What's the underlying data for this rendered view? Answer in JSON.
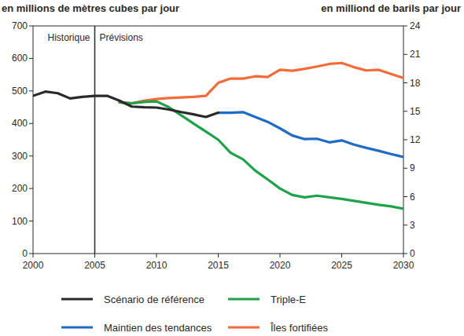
{
  "chart_data": {
    "type": "line",
    "y_label": "en millions de mètres cubes par jour",
    "y2_label": "en milliond de barils par jour",
    "x": [
      2000,
      2001,
      2002,
      2003,
      2004,
      2005,
      2006,
      2007,
      2008,
      2009,
      2010,
      2011,
      2012,
      2013,
      2014,
      2015,
      2016,
      2017,
      2018,
      2019,
      2020,
      2021,
      2022,
      2023,
      2024,
      2025,
      2026,
      2027,
      2028,
      2029,
      2030
    ],
    "xlim": [
      2000,
      2030
    ],
    "xticks": [
      2000,
      2005,
      2010,
      2015,
      2020,
      2025,
      2030
    ],
    "ylim": [
      0,
      700
    ],
    "yticks": [
      0,
      100,
      200,
      300,
      400,
      500,
      600,
      700
    ],
    "y2lim": [
      0,
      24
    ],
    "y2ticks": [
      0,
      3,
      6,
      9,
      12,
      15,
      18,
      21,
      24
    ],
    "forecast_start": 2005,
    "annotations": [
      {
        "text": "Historique"
      },
      {
        "text": "Prévisions"
      }
    ],
    "legend": "bottom",
    "grid": false,
    "series": [
      {
        "name": "Scénario de référence",
        "color": "#2b2a29",
        "values": [
          485,
          498,
          493,
          477,
          482,
          485,
          485,
          470,
          452,
          450,
          449,
          443,
          435,
          428,
          420,
          433,
          null,
          null,
          null,
          null,
          null,
          null,
          null,
          null,
          null,
          null,
          null,
          null,
          null,
          null,
          null
        ]
      },
      {
        "name": "Triple-E",
        "color": "#1ea24a",
        "values": [
          null,
          null,
          null,
          null,
          null,
          null,
          null,
          465,
          462,
          466,
          468,
          450,
          425,
          400,
          375,
          350,
          310,
          290,
          255,
          228,
          200,
          180,
          173,
          178,
          173,
          168,
          162,
          156,
          150,
          145,
          138
        ]
      },
      {
        "name": "Maintien des tendances",
        "color": "#1f6bc5",
        "values": [
          null,
          null,
          null,
          null,
          null,
          null,
          null,
          null,
          null,
          null,
          null,
          null,
          null,
          null,
          null,
          433,
          433,
          435,
          420,
          405,
          385,
          363,
          352,
          353,
          342,
          348,
          335,
          325,
          316,
          306,
          297
        ]
      },
      {
        "name": "Îles fortifiées",
        "color": "#f26b38",
        "values": [
          null,
          null,
          null,
          null,
          null,
          null,
          null,
          465,
          462,
          470,
          475,
          478,
          480,
          482,
          485,
          525,
          538,
          538,
          545,
          543,
          565,
          562,
          568,
          575,
          583,
          586,
          573,
          563,
          565,
          552,
          540
        ]
      }
    ]
  }
}
